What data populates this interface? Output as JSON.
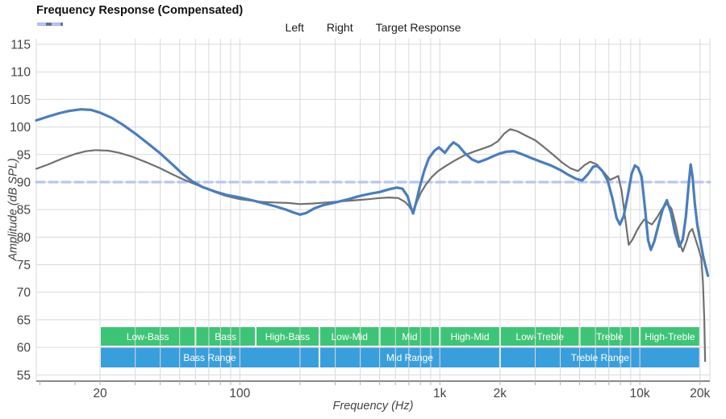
{
  "header": {
    "title": "Frequency Response (Compensated)"
  },
  "legend": {
    "items": [
      {
        "label": "Left",
        "color": "#4a7ebb",
        "style": "solid",
        "thickness": 4
      },
      {
        "label": "Right",
        "color": "#707070",
        "style": "solid",
        "thickness": 2.5
      },
      {
        "label": "Target Response",
        "color": "#b9c6f2",
        "style": "dashed",
        "thickness": 3.5
      }
    ]
  },
  "axes": {
    "y": {
      "title": "Amplitude (dB SPL)",
      "ticks": [
        115,
        110,
        105,
        100,
        95,
        90,
        85,
        80,
        75,
        70,
        65,
        60,
        55
      ]
    },
    "x": {
      "title": "Frequency (Hz)",
      "ticks": [
        {
          "value": 20,
          "label": "20"
        },
        {
          "value": 100,
          "label": "100"
        },
        {
          "value": 1000,
          "label": "1k"
        },
        {
          "value": 2000,
          "label": "2k"
        },
        {
          "value": 10000,
          "label": "10k"
        },
        {
          "value": 20000,
          "label": "20k"
        }
      ],
      "gridlines": [
        20,
        30,
        40,
        50,
        60,
        70,
        80,
        90,
        100,
        200,
        300,
        400,
        500,
        600,
        700,
        800,
        900,
        1000,
        2000,
        3000,
        4000,
        5000,
        6000,
        7000,
        8000,
        9000,
        10000,
        20000
      ],
      "minor_ticks": [
        10,
        15,
        20,
        30,
        40,
        50,
        60,
        70,
        80,
        90,
        100,
        200,
        300,
        400,
        500,
        600,
        700,
        800,
        900,
        1000,
        2000,
        3000,
        4000,
        5000,
        6000,
        7000,
        8000,
        9000,
        10000,
        20000
      ]
    }
  },
  "chart_data": {
    "type": "line",
    "title": "Frequency Response (Compensated)",
    "xlabel": "Frequency (Hz)",
    "ylabel": "Amplitude (dB SPL)",
    "x_scale": "log",
    "x_range_hz": [
      9.6,
      22400
    ],
    "y_range_db": [
      54,
      116
    ],
    "grid": true,
    "legend_position": "top",
    "target_db": 90,
    "colors": {
      "grid": "#d9d9d9",
      "axis": "#8a8a8a",
      "tick": "#b0b0b0",
      "label": "#444444"
    },
    "series": [
      {
        "name": "Left",
        "color": "#4a7ebb",
        "width": 3.2,
        "style": "solid",
        "points": [
          [
            9.6,
            101.2
          ],
          [
            11,
            101.9
          ],
          [
            12.5,
            102.5
          ],
          [
            14,
            102.9
          ],
          [
            16,
            103.2
          ],
          [
            18,
            103.1
          ],
          [
            20,
            102.6
          ],
          [
            23,
            101.6
          ],
          [
            26,
            100.4
          ],
          [
            30,
            98.8
          ],
          [
            35,
            96.9
          ],
          [
            40,
            95.2
          ],
          [
            46,
            93.2
          ],
          [
            52,
            91.4
          ],
          [
            58,
            90.1
          ],
          [
            65,
            89.1
          ],
          [
            75,
            88.3
          ],
          [
            85,
            87.7
          ],
          [
            100,
            87.2
          ],
          [
            115,
            86.7
          ],
          [
            130,
            86.2
          ],
          [
            150,
            85.6
          ],
          [
            170,
            85.0
          ],
          [
            185,
            84.5
          ],
          [
            200,
            84.1
          ],
          [
            215,
            84.4
          ],
          [
            235,
            85.2
          ],
          [
            260,
            85.8
          ],
          [
            300,
            86.3
          ],
          [
            350,
            86.9
          ],
          [
            400,
            87.5
          ],
          [
            450,
            87.9
          ],
          [
            500,
            88.2
          ],
          [
            560,
            88.7
          ],
          [
            610,
            89.0
          ],
          [
            650,
            88.8
          ],
          [
            690,
            87.4
          ],
          [
            715,
            85.5
          ],
          [
            735,
            84.3
          ],
          [
            760,
            86.2
          ],
          [
            795,
            89.2
          ],
          [
            835,
            92.0
          ],
          [
            880,
            94.3
          ],
          [
            940,
            95.7
          ],
          [
            990,
            96.3
          ],
          [
            1060,
            95.3
          ],
          [
            1120,
            96.5
          ],
          [
            1170,
            97.2
          ],
          [
            1240,
            96.6
          ],
          [
            1330,
            95.3
          ],
          [
            1450,
            94.1
          ],
          [
            1560,
            93.6
          ],
          [
            1700,
            94.1
          ],
          [
            1850,
            94.7
          ],
          [
            2000,
            95.2
          ],
          [
            2150,
            95.5
          ],
          [
            2350,
            95.6
          ],
          [
            2600,
            95.0
          ],
          [
            2900,
            94.3
          ],
          [
            3200,
            93.7
          ],
          [
            3600,
            93.0
          ],
          [
            4000,
            92.2
          ],
          [
            4400,
            91.3
          ],
          [
            4800,
            90.6
          ],
          [
            5150,
            90.3
          ],
          [
            5500,
            91.4
          ],
          [
            5850,
            92.8
          ],
          [
            6150,
            92.9
          ],
          [
            6500,
            92.0
          ],
          [
            6900,
            90.3
          ],
          [
            7300,
            87.0
          ],
          [
            7650,
            83.5
          ],
          [
            7950,
            82.3
          ],
          [
            8300,
            83.8
          ],
          [
            8700,
            87.5
          ],
          [
            9100,
            91.5
          ],
          [
            9450,
            93.0
          ],
          [
            9800,
            92.6
          ],
          [
            10200,
            91.0
          ],
          [
            10600,
            85.5
          ],
          [
            11000,
            79.5
          ],
          [
            11350,
            77.7
          ],
          [
            11800,
            79.2
          ],
          [
            12400,
            82.2
          ],
          [
            13000,
            85.0
          ],
          [
            13650,
            86.7
          ],
          [
            14300,
            84.5
          ],
          [
            15000,
            80.8
          ],
          [
            15750,
            78.3
          ],
          [
            16400,
            79.6
          ],
          [
            17000,
            83.8
          ],
          [
            17500,
            89.0
          ],
          [
            17950,
            93.2
          ],
          [
            18350,
            91.0
          ],
          [
            18850,
            86.0
          ],
          [
            19400,
            82.2
          ],
          [
            20000,
            79.6
          ],
          [
            20800,
            76.3
          ],
          [
            21900,
            73.0
          ]
        ]
      },
      {
        "name": "Right",
        "color": "#707070",
        "width": 2.2,
        "style": "solid",
        "points": [
          [
            9.6,
            92.4
          ],
          [
            11,
            93.2
          ],
          [
            13,
            94.3
          ],
          [
            15,
            95.1
          ],
          [
            17,
            95.6
          ],
          [
            19,
            95.8
          ],
          [
            22,
            95.7
          ],
          [
            25,
            95.3
          ],
          [
            29,
            94.6
          ],
          [
            34,
            93.6
          ],
          [
            40,
            92.5
          ],
          [
            46,
            91.4
          ],
          [
            52,
            90.5
          ],
          [
            58,
            89.8
          ],
          [
            65,
            89.1
          ],
          [
            75,
            88.2
          ],
          [
            85,
            87.5
          ],
          [
            100,
            86.9
          ],
          [
            115,
            86.6
          ],
          [
            130,
            86.4
          ],
          [
            150,
            86.3
          ],
          [
            175,
            86.2
          ],
          [
            200,
            86.0
          ],
          [
            230,
            86.1
          ],
          [
            270,
            86.3
          ],
          [
            320,
            86.5
          ],
          [
            380,
            86.7
          ],
          [
            440,
            86.9
          ],
          [
            500,
            87.1
          ],
          [
            560,
            87.2
          ],
          [
            620,
            87.1
          ],
          [
            670,
            86.4
          ],
          [
            700,
            85.7
          ],
          [
            730,
            84.6
          ],
          [
            760,
            86.0
          ],
          [
            800,
            87.9
          ],
          [
            850,
            89.5
          ],
          [
            910,
            90.9
          ],
          [
            980,
            92.0
          ],
          [
            1080,
            93.0
          ],
          [
            1200,
            94.0
          ],
          [
            1350,
            95.0
          ],
          [
            1500,
            95.6
          ],
          [
            1650,
            96.1
          ],
          [
            1800,
            96.6
          ],
          [
            1950,
            97.4
          ],
          [
            2100,
            98.8
          ],
          [
            2250,
            99.6
          ],
          [
            2450,
            99.2
          ],
          [
            2700,
            98.4
          ],
          [
            3000,
            97.6
          ],
          [
            3300,
            96.4
          ],
          [
            3700,
            94.9
          ],
          [
            4100,
            93.5
          ],
          [
            4500,
            92.5
          ],
          [
            4900,
            92.0
          ],
          [
            5300,
            93.1
          ],
          [
            5650,
            93.7
          ],
          [
            6100,
            93.2
          ],
          [
            6600,
            91.8
          ],
          [
            7100,
            90.4
          ],
          [
            7500,
            90.8
          ],
          [
            7800,
            91.1
          ],
          [
            8100,
            88.5
          ],
          [
            8450,
            83.5
          ],
          [
            8800,
            78.6
          ],
          [
            9200,
            79.6
          ],
          [
            9700,
            81.3
          ],
          [
            10000,
            82.1
          ],
          [
            10500,
            83.2
          ],
          [
            11000,
            82.7
          ],
          [
            11500,
            82.3
          ],
          [
            12200,
            83.6
          ],
          [
            13000,
            85.3
          ],
          [
            13700,
            86.1
          ],
          [
            14400,
            85.2
          ],
          [
            15100,
            82.3
          ],
          [
            15800,
            79.0
          ],
          [
            16400,
            77.4
          ],
          [
            17000,
            78.9
          ],
          [
            17700,
            80.9
          ],
          [
            18300,
            81.5
          ],
          [
            19000,
            79.6
          ],
          [
            19700,
            77.8
          ],
          [
            20300,
            76.2
          ],
          [
            20700,
            71.5
          ],
          [
            21000,
            65.0
          ],
          [
            21200,
            57.5
          ]
        ]
      },
      {
        "name": "Target Response",
        "color": "#b9c6f2",
        "width": 3.2,
        "style": "dashed",
        "points": [
          [
            9.6,
            90
          ],
          [
            22400,
            90
          ]
        ]
      }
    ],
    "bands": {
      "sub_color": "#3ec476",
      "range_color": "#399fdc",
      "text_color": "#ffffff",
      "sub_bands": [
        {
          "label": "Low-Bass",
          "from_hz": 20,
          "to_hz": 60
        },
        {
          "label": "Bass",
          "from_hz": 60,
          "to_hz": 120
        },
        {
          "label": "High-Bass",
          "from_hz": 120,
          "to_hz": 250
        },
        {
          "label": "Low-Mid",
          "from_hz": 250,
          "to_hz": 500
        },
        {
          "label": "Mid",
          "from_hz": 500,
          "to_hz": 1000
        },
        {
          "label": "High-Mid",
          "from_hz": 1000,
          "to_hz": 2000
        },
        {
          "label": "Low-Treble",
          "from_hz": 2000,
          "to_hz": 5000
        },
        {
          "label": "Treble",
          "from_hz": 5000,
          "to_hz": 10000
        },
        {
          "label": "High-Treble",
          "from_hz": 10000,
          "to_hz": 20000
        }
      ],
      "range_bands": [
        {
          "label": "Bass Range",
          "from_hz": 20,
          "to_hz": 250
        },
        {
          "label": "Mid Range",
          "from_hz": 250,
          "to_hz": 2000
        },
        {
          "label": "Treble Range",
          "from_hz": 2000,
          "to_hz": 20000
        }
      ]
    }
  }
}
